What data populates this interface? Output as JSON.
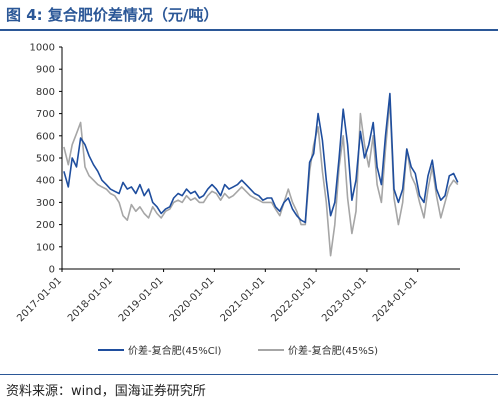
{
  "header": {
    "title": "图 4:  复合肥价差情况（元/吨）"
  },
  "footer": {
    "source": "资料来源：wind，国海证券研究所"
  },
  "chart_data": {
    "type": "line",
    "title": "",
    "xlabel": "",
    "ylabel": "",
    "ylim": [
      0,
      1000
    ],
    "yticks": [
      0,
      100,
      200,
      300,
      400,
      500,
      600,
      700,
      800,
      900,
      1000
    ],
    "xlim": [
      "2017-01-01",
      "2024-10-31"
    ],
    "xticks": [
      "2017-01-01",
      "2018-01-01",
      "2019-01-01",
      "2020-01-01",
      "2021-01-01",
      "2022-01-01",
      "2023-01-01",
      "2024-01-01"
    ],
    "grid": false,
    "legend": "bottom",
    "colors": {
      "series1": "#1f4e9e",
      "series2": "#a6a6a6"
    },
    "series": [
      {
        "name": "价差-复合肥(45%Cl)",
        "x": [
          "2017-01",
          "2017-02",
          "2017-03",
          "2017-04",
          "2017-05",
          "2017-06",
          "2017-07",
          "2017-08",
          "2017-09",
          "2017-10",
          "2017-11",
          "2017-12",
          "2018-01",
          "2018-02",
          "2018-03",
          "2018-04",
          "2018-05",
          "2018-06",
          "2018-07",
          "2018-08",
          "2018-09",
          "2018-10",
          "2018-11",
          "2018-12",
          "2019-01",
          "2019-02",
          "2019-03",
          "2019-04",
          "2019-05",
          "2019-06",
          "2019-07",
          "2019-08",
          "2019-09",
          "2019-10",
          "2019-11",
          "2019-12",
          "2020-01",
          "2020-02",
          "2020-03",
          "2020-04",
          "2020-05",
          "2020-06",
          "2020-07",
          "2020-08",
          "2020-09",
          "2020-10",
          "2020-11",
          "2020-12",
          "2021-01",
          "2021-02",
          "2021-03",
          "2021-04",
          "2021-05",
          "2021-06",
          "2021-07",
          "2021-08",
          "2021-09",
          "2021-10",
          "2021-11",
          "2021-12",
          "2022-01",
          "2022-02",
          "2022-03",
          "2022-04",
          "2022-05",
          "2022-06",
          "2022-07",
          "2022-08",
          "2022-09",
          "2022-10",
          "2022-11",
          "2022-12",
          "2023-01",
          "2023-02",
          "2023-03",
          "2023-04",
          "2023-05",
          "2023-06",
          "2023-07",
          "2023-08",
          "2023-09",
          "2023-10",
          "2023-11",
          "2023-12",
          "2024-01",
          "2024-02",
          "2024-03",
          "2024-04",
          "2024-05",
          "2024-06",
          "2024-07",
          "2024-08",
          "2024-09",
          "2024-10"
        ],
        "values": [
          440,
          370,
          500,
          460,
          590,
          560,
          510,
          470,
          440,
          400,
          380,
          360,
          350,
          340,
          390,
          360,
          370,
          340,
          380,
          330,
          360,
          300,
          280,
          250,
          270,
          280,
          320,
          340,
          330,
          360,
          340,
          350,
          320,
          330,
          360,
          380,
          360,
          330,
          380,
          360,
          370,
          380,
          400,
          380,
          360,
          340,
          330,
          310,
          320,
          320,
          280,
          260,
          300,
          320,
          270,
          240,
          220,
          210,
          480,
          520,
          700,
          580,
          400,
          240,
          300,
          500,
          720,
          560,
          310,
          400,
          620,
          500,
          560,
          660,
          460,
          380,
          600,
          790,
          360,
          300,
          360,
          540,
          460,
          430,
          330,
          300,
          420,
          490,
          360,
          310,
          330,
          420,
          430,
          390
        ]
      },
      {
        "name": "价差-复合肥(45%S)",
        "x": [
          "2017-01",
          "2017-02",
          "2017-03",
          "2017-04",
          "2017-05",
          "2017-06",
          "2017-07",
          "2017-08",
          "2017-09",
          "2017-10",
          "2017-11",
          "2017-12",
          "2018-01",
          "2018-02",
          "2018-03",
          "2018-04",
          "2018-05",
          "2018-06",
          "2018-07",
          "2018-08",
          "2018-09",
          "2018-10",
          "2018-11",
          "2018-12",
          "2019-01",
          "2019-02",
          "2019-03",
          "2019-04",
          "2019-05",
          "2019-06",
          "2019-07",
          "2019-08",
          "2019-09",
          "2019-10",
          "2019-11",
          "2019-12",
          "2020-01",
          "2020-02",
          "2020-03",
          "2020-04",
          "2020-05",
          "2020-06",
          "2020-07",
          "2020-08",
          "2020-09",
          "2020-10",
          "2020-11",
          "2020-12",
          "2021-01",
          "2021-02",
          "2021-03",
          "2021-04",
          "2021-05",
          "2021-06",
          "2021-07",
          "2021-08",
          "2021-09",
          "2021-10",
          "2021-11",
          "2021-12",
          "2022-01",
          "2022-02",
          "2022-03",
          "2022-04",
          "2022-05",
          "2022-06",
          "2022-07",
          "2022-08",
          "2022-09",
          "2022-10",
          "2022-11",
          "2022-12",
          "2023-01",
          "2023-02",
          "2023-03",
          "2023-04",
          "2023-05",
          "2023-06",
          "2023-07",
          "2023-08",
          "2023-09",
          "2023-10",
          "2023-11",
          "2023-12",
          "2024-01",
          "2024-02",
          "2024-03",
          "2024-04",
          "2024-05",
          "2024-06",
          "2024-07",
          "2024-08",
          "2024-09",
          "2024-10"
        ],
        "values": [
          550,
          470,
          560,
          610,
          660,
          460,
          420,
          400,
          380,
          370,
          360,
          340,
          330,
          300,
          240,
          220,
          290,
          260,
          280,
          250,
          230,
          280,
          250,
          230,
          260,
          270,
          300,
          310,
          300,
          330,
          310,
          320,
          300,
          300,
          330,
          350,
          340,
          310,
          340,
          320,
          330,
          350,
          370,
          350,
          330,
          320,
          310,
          300,
          300,
          300,
          270,
          240,
          300,
          360,
          300,
          260,
          200,
          200,
          440,
          560,
          640,
          440,
          300,
          60,
          200,
          460,
          600,
          320,
          160,
          260,
          700,
          560,
          460,
          600,
          380,
          300,
          540,
          760,
          320,
          200,
          300,
          540,
          420,
          380,
          300,
          230,
          360,
          460,
          330,
          230,
          300,
          370,
          400,
          380
        ]
      }
    ]
  }
}
